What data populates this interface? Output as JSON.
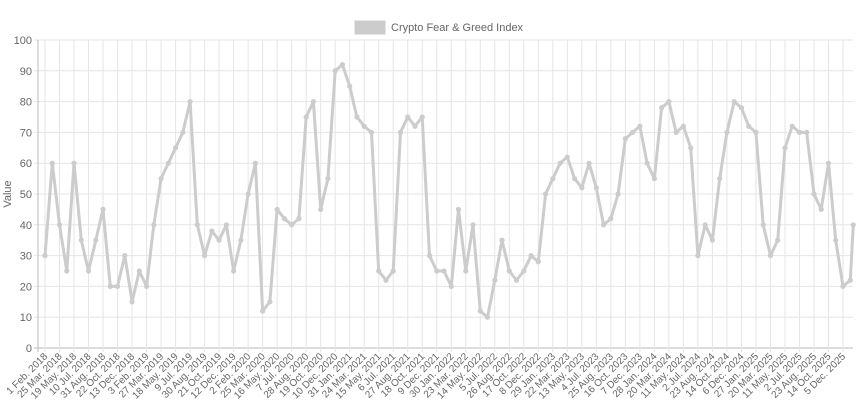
{
  "chart_data": {
    "type": "line",
    "title": "",
    "xlabel": "",
    "ylabel": "Value",
    "ylim": [
      0,
      100
    ],
    "yticks": [
      0,
      10,
      20,
      30,
      40,
      50,
      60,
      70,
      80,
      90,
      100
    ],
    "grid": true,
    "legend": {
      "position": "top",
      "entries": [
        "Crypto Fear & Greed Index"
      ]
    },
    "colors": {
      "series": "#cccccc",
      "grid": "#e5e5e5",
      "axis": "#bbbbbb",
      "text": "#666666"
    },
    "xtick_labels": [
      "1 Feb. 2018",
      "25 Mar. 2018",
      "19 May. 2018",
      "10 Jul. 2018",
      "31 Aug. 2018",
      "22 Oct. 2018",
      "13 Dec. 2018",
      "3 Feb. 2019",
      "27 Mar. 2019",
      "18 May. 2019",
      "9 Jul. 2019",
      "30 Aug. 2019",
      "21 Oct. 2019",
      "12 Dec. 2019",
      "2 Feb. 2020",
      "25 Mar. 2020",
      "16 May. 2020",
      "7 Jul. 2020",
      "28 Aug. 2020",
      "19 Oct. 2020",
      "10 Dec. 2020",
      "31 Jan. 2021",
      "24 Mar. 2021",
      "15 May. 2021",
      "6 Jul. 2021",
      "27 Aug. 2021",
      "18 Oct. 2021",
      "9 Dec. 2021",
      "30 Jan. 2022",
      "23 Mar. 2022",
      "14 May. 2022",
      "5 Jul. 2022",
      "26 Aug. 2022",
      "17 Oct. 2022",
      "8 Dec. 2022",
      "29 Jan. 2023",
      "22 Mar. 2023",
      "13 May. 2023",
      "4 Jul. 2023",
      "25 Aug. 2023",
      "16 Oct. 2023",
      "7 Dec. 2023",
      "28 Jan. 2024",
      "20 Mar. 2024",
      "11 May. 2024",
      "2 Jul. 2024",
      "23 Aug. 2024",
      "14 Oct. 2024",
      "6 Dec. 2024",
      "27 Jan. 2025",
      "20 Mar. 2025",
      "11 May. 2025",
      "2 Jul. 2025",
      "23 Aug. 2025",
      "14 Oct. 2025",
      "5 Dec. 2025"
    ],
    "series": [
      {
        "name": "Crypto Fear & Greed Index",
        "points": [
          [
            "2018-02-01",
            30
          ],
          [
            "2018-02-27",
            60
          ],
          [
            "2018-03-25",
            40
          ],
          [
            "2018-04-20",
            25
          ],
          [
            "2018-05-19",
            60
          ],
          [
            "2018-06-14",
            35
          ],
          [
            "2018-07-10",
            25
          ],
          [
            "2018-08-05",
            35
          ],
          [
            "2018-08-31",
            45
          ],
          [
            "2018-09-26",
            20
          ],
          [
            "2018-10-22",
            20
          ],
          [
            "2018-11-17",
            30
          ],
          [
            "2018-12-13",
            15
          ],
          [
            "2019-01-08",
            25
          ],
          [
            "2019-02-03",
            20
          ],
          [
            "2019-03-01",
            40
          ],
          [
            "2019-03-27",
            55
          ],
          [
            "2019-04-22",
            60
          ],
          [
            "2019-05-18",
            65
          ],
          [
            "2019-06-13",
            70
          ],
          [
            "2019-07-09",
            80
          ],
          [
            "2019-08-04",
            40
          ],
          [
            "2019-08-30",
            30
          ],
          [
            "2019-09-25",
            38
          ],
          [
            "2019-10-21",
            35
          ],
          [
            "2019-11-16",
            40
          ],
          [
            "2019-12-12",
            25
          ],
          [
            "2020-01-07",
            35
          ],
          [
            "2020-02-02",
            50
          ],
          [
            "2020-02-28",
            60
          ],
          [
            "2020-03-25",
            12
          ],
          [
            "2020-04-20",
            15
          ],
          [
            "2020-05-16",
            45
          ],
          [
            "2020-06-11",
            42
          ],
          [
            "2020-07-07",
            40
          ],
          [
            "2020-08-02",
            42
          ],
          [
            "2020-08-28",
            75
          ],
          [
            "2020-09-23",
            80
          ],
          [
            "2020-10-19",
            45
          ],
          [
            "2020-11-14",
            55
          ],
          [
            "2020-12-10",
            90
          ],
          [
            "2021-01-05",
            92
          ],
          [
            "2021-01-31",
            85
          ],
          [
            "2021-02-26",
            75
          ],
          [
            "2021-03-24",
            72
          ],
          [
            "2021-04-19",
            70
          ],
          [
            "2021-05-15",
            25
          ],
          [
            "2021-06-10",
            22
          ],
          [
            "2021-07-06",
            25
          ],
          [
            "2021-08-01",
            70
          ],
          [
            "2021-08-27",
            75
          ],
          [
            "2021-09-22",
            72
          ],
          [
            "2021-10-18",
            75
          ],
          [
            "2021-11-13",
            30
          ],
          [
            "2021-12-09",
            25
          ],
          [
            "2022-01-04",
            25
          ],
          [
            "2022-01-30",
            20
          ],
          [
            "2022-02-25",
            45
          ],
          [
            "2022-03-23",
            25
          ],
          [
            "2022-04-18",
            40
          ],
          [
            "2022-05-14",
            12
          ],
          [
            "2022-06-09",
            10
          ],
          [
            "2022-07-05",
            22
          ],
          [
            "2022-07-31",
            35
          ],
          [
            "2022-08-26",
            25
          ],
          [
            "2022-09-21",
            22
          ],
          [
            "2022-10-17",
            25
          ],
          [
            "2022-11-12",
            30
          ],
          [
            "2022-12-08",
            28
          ],
          [
            "2023-01-03",
            50
          ],
          [
            "2023-01-29",
            55
          ],
          [
            "2023-02-24",
            60
          ],
          [
            "2023-03-22",
            62
          ],
          [
            "2023-04-17",
            55
          ],
          [
            "2023-05-13",
            52
          ],
          [
            "2023-06-08",
            60
          ],
          [
            "2023-07-04",
            52
          ],
          [
            "2023-07-30",
            40
          ],
          [
            "2023-08-25",
            42
          ],
          [
            "2023-09-20",
            50
          ],
          [
            "2023-10-16",
            68
          ],
          [
            "2023-11-11",
            70
          ],
          [
            "2023-12-07",
            72
          ],
          [
            "2024-01-02",
            60
          ],
          [
            "2024-01-28",
            55
          ],
          [
            "2024-02-23",
            78
          ],
          [
            "2024-03-20",
            80
          ],
          [
            "2024-04-15",
            70
          ],
          [
            "2024-05-11",
            72
          ],
          [
            "2024-06-06",
            65
          ],
          [
            "2024-07-02",
            30
          ],
          [
            "2024-07-28",
            40
          ],
          [
            "2024-08-23",
            35
          ],
          [
            "2024-09-18",
            55
          ],
          [
            "2024-10-14",
            70
          ],
          [
            "2024-11-09",
            80
          ],
          [
            "2024-12-06",
            78
          ],
          [
            "2025-01-01",
            72
          ],
          [
            "2025-01-27",
            70
          ],
          [
            "2025-02-22",
            40
          ],
          [
            "2025-03-20",
            30
          ],
          [
            "2025-04-15",
            35
          ],
          [
            "2025-05-11",
            65
          ],
          [
            "2025-06-06",
            72
          ],
          [
            "2025-07-02",
            70
          ],
          [
            "2025-07-28",
            70
          ],
          [
            "2025-08-23",
            50
          ],
          [
            "2025-09-18",
            45
          ],
          [
            "2025-10-14",
            60
          ],
          [
            "2025-11-09",
            35
          ],
          [
            "2025-12-05",
            20
          ],
          [
            "2025-12-18",
            22
          ],
          [
            "2025-12-31",
            40
          ]
        ]
      }
    ]
  }
}
